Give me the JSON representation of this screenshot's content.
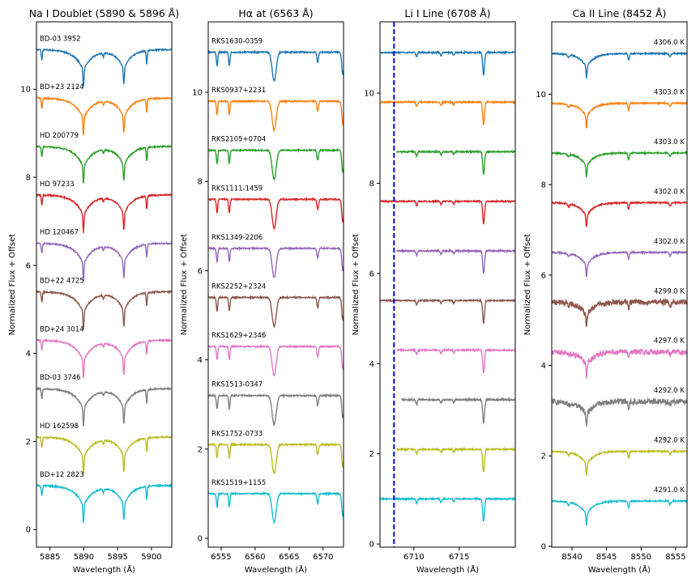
{
  "colors": [
    "#1f77b4",
    "#ff7f0e",
    "#2ca02c",
    "#d62728",
    "#9467bd",
    "#8c564b",
    "#e377c2",
    "#7f7f7f",
    "#bcbd22",
    "#17becf"
  ],
  "chart_data": [
    {
      "type": "line",
      "title": "Na I Doublet (5890 & 5896 Å)",
      "xlabel": "Wavelength (Å)",
      "ylabel": "Normalized Flux + Offset",
      "xlim": [
        5883,
        5903
      ],
      "ylim": [
        -0.4,
        11.53
      ],
      "xticks": [
        5885,
        5890,
        5895,
        5900
      ],
      "yticks": [
        0,
        2,
        4,
        6,
        8,
        10
      ],
      "offset_step": 1.1,
      "labels_position": "left",
      "series_labels": [
        "BD-03 3952",
        "BD+23 2124",
        "HD 200779",
        "HD 97233",
        "HD 120467",
        "BD+22 4725",
        "BD+24 3014",
        "BD-03 3746",
        "HD 162598",
        "BD+12 2823"
      ],
      "features": [
        {
          "center": 5889.95,
          "depth": 0.85,
          "width": 1.6,
          "kind": "broad"
        },
        {
          "center": 5895.92,
          "depth": 0.8,
          "width": 1.4,
          "kind": "broad"
        },
        {
          "center": 5883.8,
          "depth": 0.22,
          "width": 0.08,
          "kind": "narrow"
        },
        {
          "center": 5892.9,
          "depth": 0.08,
          "width": 0.08,
          "kind": "narrow"
        },
        {
          "center": 5899.3,
          "depth": 0.3,
          "width": 0.08,
          "kind": "narrow"
        }
      ]
    },
    {
      "type": "line",
      "title": "Hα at (6563 Å)",
      "xlabel": "Wavelength (Å)",
      "ylabel": "Normalized Flux + Offset",
      "xlim": [
        6553.1,
        6573
      ],
      "ylim": [
        -0.2,
        11.58
      ],
      "xticks": [
        6555,
        6560,
        6565,
        6570
      ],
      "yticks": [
        0,
        2,
        4,
        6,
        8,
        10
      ],
      "offset_step": 1.1,
      "labels_position": "left",
      "series_labels": [
        "RKS1630-0359",
        "RKS0937+2231",
        "RKS2105+0704",
        "RKS1111-1459",
        "RKS1349-2206",
        "RKS2252+2324",
        "RKS1629+2346",
        "RKS1513-0347",
        "RKS1752-0733",
        "RKS1519+1155"
      ],
      "features": [
        {
          "center": 6562.8,
          "depth": 0.65,
          "width": 0.3,
          "kind": "gauss"
        },
        {
          "center": 6554.4,
          "depth": 0.3,
          "width": 0.1,
          "kind": "gauss"
        },
        {
          "center": 6556.2,
          "depth": 0.3,
          "width": 0.1,
          "kind": "gauss"
        },
        {
          "center": 6569.2,
          "depth": 0.22,
          "width": 0.12,
          "kind": "gauss"
        },
        {
          "center": 6572.9,
          "depth": 0.5,
          "width": 0.15,
          "kind": "gauss"
        }
      ]
    },
    {
      "type": "line",
      "title": "Li I Line (6708 Å)",
      "xlabel": "Wavelength (Å)",
      "ylabel": "Normalized Flux + Offset",
      "xlim": [
        6706.25,
        6721.2
      ],
      "ylim": [
        -0.07,
        11.58
      ],
      "xticks": [
        6710,
        6715
      ],
      "yticks": [
        0,
        2,
        4,
        6,
        8,
        10
      ],
      "offset_step": 1.1,
      "vline": {
        "x": 6707.8,
        "color": "#0000ff",
        "style": "dashed"
      },
      "series_start": [
        6706.3,
        6706.3,
        6708.1,
        6706.3,
        6708.1,
        6706.3,
        6708.1,
        6708.6,
        6708.1,
        6706.3
      ],
      "features": [
        {
          "center": 6717.7,
          "depth": 0.5,
          "width": 0.1,
          "kind": "gauss"
        },
        {
          "center": 6710.3,
          "depth": 0.1,
          "width": 0.08,
          "kind": "gauss"
        },
        {
          "center": 6713.0,
          "depth": 0.07,
          "width": 0.08,
          "kind": "gauss"
        },
        {
          "center": 6714.4,
          "depth": 0.06,
          "width": 0.08,
          "kind": "gauss"
        }
      ]
    },
    {
      "type": "line",
      "title": "Ca II Line (8452 Å)",
      "xlabel": "Wavelength (Å)",
      "ylabel": "Normalized Flux + Offset",
      "xlim": [
        8537.07,
        8556.65
      ],
      "ylim": [
        -0.02,
        11.6
      ],
      "xticks": [
        8540,
        8545,
        8550,
        8555
      ],
      "yticks": [
        0,
        2,
        4,
        6,
        8,
        10
      ],
      "offset_step": 1.1,
      "labels_position": "right",
      "series_labels": [
        "4306.0 K",
        "4303.0 K",
        "4303.0 K",
        "4302.0 K",
        "4302.0 K",
        "4299.0 K",
        "4297.0 K",
        "4292.0 K",
        "4292.0 K",
        "4291.0 K"
      ],
      "features": [
        {
          "center": 8542.1,
          "depth": 0.55,
          "width": 1.3,
          "kind": "broad"
        },
        {
          "center": 8548.2,
          "depth": 0.15,
          "width": 0.1,
          "kind": "gauss"
        },
        {
          "center": 8539.5,
          "depth": 0.06,
          "width": 0.15,
          "kind": "gauss"
        },
        {
          "center": 8554.2,
          "depth": 0.07,
          "width": 0.12,
          "kind": "gauss"
        }
      ]
    }
  ]
}
